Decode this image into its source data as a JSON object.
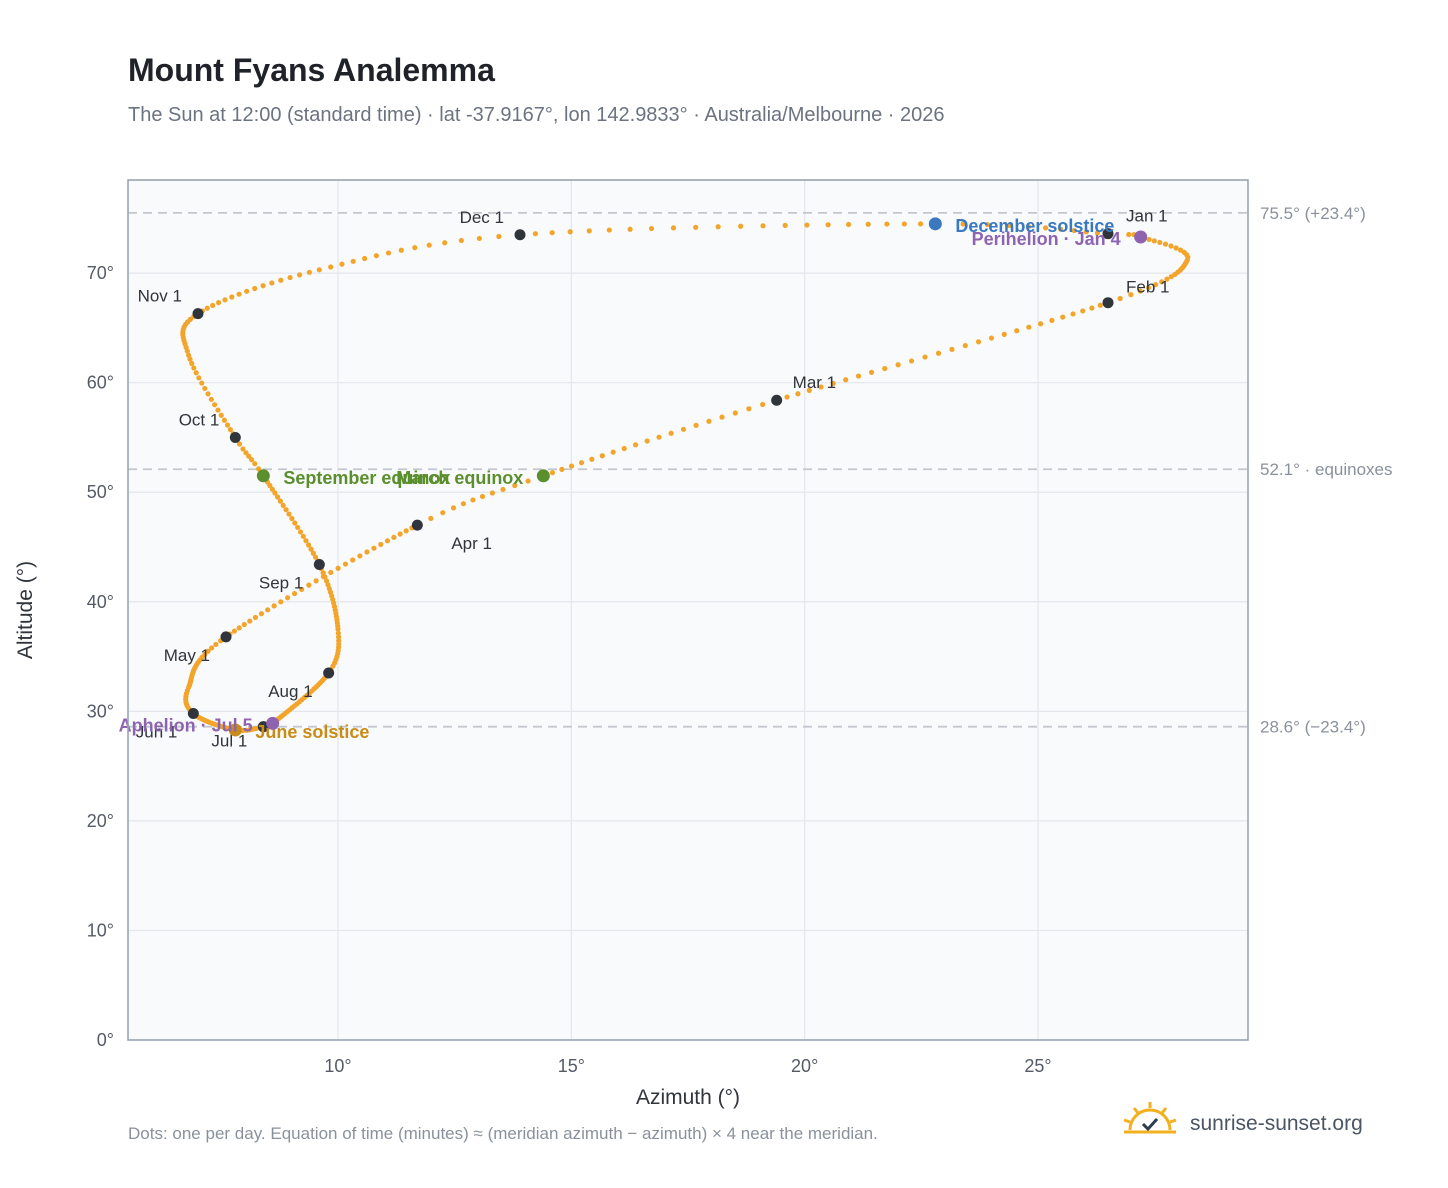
{
  "header": {
    "title": "Mount Fyans Analemma",
    "subtitle": "The Sun at 12:00 (standard time) · lat -37.9167°, lon 142.9833° · Australia/Melbourne · 2026"
  },
  "footer": {
    "note": "Dots: one per day. Equation of time (minutes) ≈ (meridian azimuth − azimuth) × 4 near the meridian.",
    "brand": "sunrise-sunset.org",
    "brand_icon": "sun-check-icon"
  },
  "colors": {
    "curve": "#f2a52a",
    "month_marker": "#30343b",
    "equinox": "#5b8f2e",
    "december_solstice": "#3a78c0",
    "june_solstice": "#c98c16",
    "perihelion_aphelion": "#8e63b0",
    "reference_line": "#c3c8cf",
    "plot_background": "#f8fafc",
    "grid": "#e3e7ec",
    "frame": "#9aa4b2"
  },
  "chart_data": {
    "type": "scatter",
    "title": "Mount Fyans Analemma",
    "xlabel": "Azimuth (°)",
    "ylabel": "Altitude (°)",
    "xlim": [
      5.5,
      29.5
    ],
    "ylim": [
      0,
      78.5
    ],
    "grid": true,
    "x_ticks": [
      10,
      15,
      20,
      25
    ],
    "x_tick_labels": [
      "10°",
      "15°",
      "20°",
      "25°"
    ],
    "y_ticks": [
      0,
      10,
      20,
      30,
      40,
      50,
      60,
      70
    ],
    "y_tick_labels": [
      "0°",
      "10°",
      "20°",
      "30°",
      "40°",
      "50°",
      "60°",
      "70°"
    ],
    "reference_lines": [
      {
        "y": 75.5,
        "label": "75.5° (+23.4°)"
      },
      {
        "y": 52.1,
        "label": "52.1° · equinoxes"
      },
      {
        "y": 28.6,
        "label": "28.6° (−23.4°)"
      }
    ],
    "month_markers": [
      {
        "label": "Jan 1",
        "x": 26.5,
        "y": 73.6
      },
      {
        "label": "Feb 1",
        "x": 26.5,
        "y": 67.3
      },
      {
        "label": "Mar 1",
        "x": 19.4,
        "y": 58.4
      },
      {
        "label": "Apr 1",
        "x": 11.7,
        "y": 47.0
      },
      {
        "label": "May 1",
        "x": 7.6,
        "y": 36.8
      },
      {
        "label": "Jun 1",
        "x": 6.9,
        "y": 29.8
      },
      {
        "label": "Jul 1",
        "x": 8.4,
        "y": 28.6
      },
      {
        "label": "Aug 1",
        "x": 9.8,
        "y": 33.5
      },
      {
        "label": "Sep 1",
        "x": 9.6,
        "y": 43.4
      },
      {
        "label": "Oct 1",
        "x": 7.8,
        "y": 55.0
      },
      {
        "label": "Nov 1",
        "x": 7.0,
        "y": 66.3
      },
      {
        "label": "Dec 1",
        "x": 13.9,
        "y": 73.5
      }
    ],
    "events": [
      {
        "label": "December solstice",
        "x": 22.8,
        "y": 74.5,
        "kind": "december_solstice"
      },
      {
        "label": "Perihelion · Jan 4",
        "x": 27.2,
        "y": 73.3,
        "kind": "perihelion_aphelion"
      },
      {
        "label": "March equinox",
        "x": 14.4,
        "y": 51.5,
        "kind": "equinox"
      },
      {
        "label": "September equinox",
        "x": 8.4,
        "y": 51.5,
        "kind": "equinox"
      },
      {
        "label": "June solstice",
        "x": 7.8,
        "y": 28.3,
        "kind": "june_solstice"
      },
      {
        "label": "Aphelion · Jul 5",
        "x": 8.6,
        "y": 28.9,
        "kind": "perihelion_aphelion"
      }
    ],
    "daily_path_knots": [
      {
        "day": 0,
        "x": 26.5,
        "y": 73.6
      },
      {
        "day": 3,
        "x": 27.2,
        "y": 73.3
      },
      {
        "day": 15,
        "x": 28.2,
        "y": 71.2
      },
      {
        "day": 31,
        "x": 26.5,
        "y": 67.3
      },
      {
        "day": 59,
        "x": 19.4,
        "y": 58.4
      },
      {
        "day": 79,
        "x": 14.4,
        "y": 51.5
      },
      {
        "day": 90,
        "x": 11.7,
        "y": 47.0
      },
      {
        "day": 120,
        "x": 7.6,
        "y": 36.8
      },
      {
        "day": 140,
        "x": 6.8,
        "y": 32.2
      },
      {
        "day": 151,
        "x": 6.9,
        "y": 29.8
      },
      {
        "day": 172,
        "x": 7.8,
        "y": 28.3
      },
      {
        "day": 181,
        "x": 8.4,
        "y": 28.6
      },
      {
        "day": 185,
        "x": 8.6,
        "y": 28.9
      },
      {
        "day": 212,
        "x": 9.8,
        "y": 33.5
      },
      {
        "day": 225,
        "x": 10.0,
        "y": 37.5
      },
      {
        "day": 243,
        "x": 9.6,
        "y": 43.4
      },
      {
        "day": 265,
        "x": 8.4,
        "y": 51.5
      },
      {
        "day": 273,
        "x": 7.8,
        "y": 55.0
      },
      {
        "day": 290,
        "x": 6.8,
        "y": 62.5
      },
      {
        "day": 304,
        "x": 7.0,
        "y": 66.3
      },
      {
        "day": 320,
        "x": 9.6,
        "y": 70.3
      },
      {
        "day": 334,
        "x": 13.9,
        "y": 73.5
      },
      {
        "day": 355,
        "x": 22.8,
        "y": 74.5
      },
      {
        "day": 365,
        "x": 26.5,
        "y": 73.6
      }
    ]
  }
}
